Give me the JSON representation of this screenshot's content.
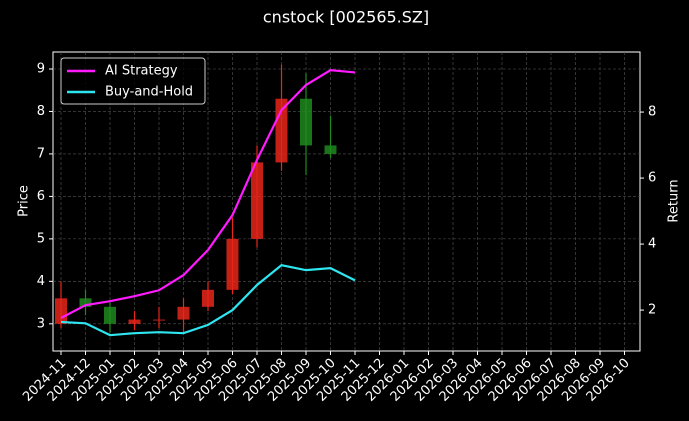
{
  "chart_data": {
    "type": "candlestick",
    "title": "cnstock [002565.SZ]",
    "ylabel": "Price",
    "y2label": "Return",
    "xlim": [
      "2024-11",
      "2026-11"
    ],
    "xticks": [
      "2024-11",
      "2024-12",
      "2025-01",
      "2025-02",
      "2025-03",
      "2025-04",
      "2025-05",
      "2025-06",
      "2025-07",
      "2025-08",
      "2025-09",
      "2025-10",
      "2025-11",
      "2025-12",
      "2026-01",
      "2026-02",
      "2026-03",
      "2026-04",
      "2026-05",
      "2026-06",
      "2026-07",
      "2026-08",
      "2026-09",
      "2026-10"
    ],
    "ylim": [
      2.36,
      9.4
    ],
    "yticks": [
      3,
      4,
      5,
      6,
      7,
      8,
      9
    ],
    "y2lim": [
      0.76,
      9.82
    ],
    "y2ticks": [
      2,
      4,
      6,
      8
    ],
    "grid": true,
    "legend": "upper left",
    "candles": {
      "up_color": "#e8261a",
      "down_color": "#1f8a1f",
      "x": [
        "2024-11",
        "2024-12",
        "2025-01",
        "2025-02",
        "2025-03",
        "2025-04",
        "2025-05",
        "2025-06",
        "2025-07",
        "2025-08",
        "2025-09",
        "2025-10"
      ],
      "open": [
        3.0,
        3.6,
        3.4,
        3.0,
        3.1,
        3.1,
        3.4,
        3.8,
        5.0,
        6.8,
        8.3,
        7.2
      ],
      "high": [
        4.0,
        3.8,
        3.5,
        3.3,
        3.4,
        3.6,
        4.0,
        5.5,
        7.2,
        9.1,
        8.9,
        7.9
      ],
      "low": [
        2.9,
        3.2,
        2.8,
        2.85,
        2.9,
        2.8,
        3.3,
        3.7,
        4.8,
        6.6,
        6.5,
        6.9
      ],
      "close": [
        3.6,
        3.4,
        3.0,
        3.1,
        3.1,
        3.4,
        3.8,
        5.0,
        6.8,
        8.3,
        7.2,
        7.0
      ]
    },
    "x": [
      "2024-11",
      "2024-12",
      "2025-01",
      "2025-02",
      "2025-03",
      "2025-04",
      "2025-05",
      "2025-06",
      "2025-07",
      "2025-08",
      "2025-09",
      "2025-10",
      "2025-11"
    ],
    "series": [
      {
        "name": "AI Strategy",
        "color": "#ff1aff",
        "axis": "y2",
        "values": [
          1.76,
          2.15,
          2.27,
          2.42,
          2.6,
          3.06,
          3.82,
          4.88,
          6.55,
          8.06,
          8.82,
          9.27,
          9.2
        ]
      },
      {
        "name": "Buy-and-Hold",
        "color": "#2ee6f0",
        "axis": "y2",
        "values": [
          1.64,
          1.6,
          1.24,
          1.3,
          1.33,
          1.3,
          1.55,
          2.0,
          2.76,
          3.36,
          3.21,
          3.27,
          2.9
        ]
      }
    ]
  }
}
